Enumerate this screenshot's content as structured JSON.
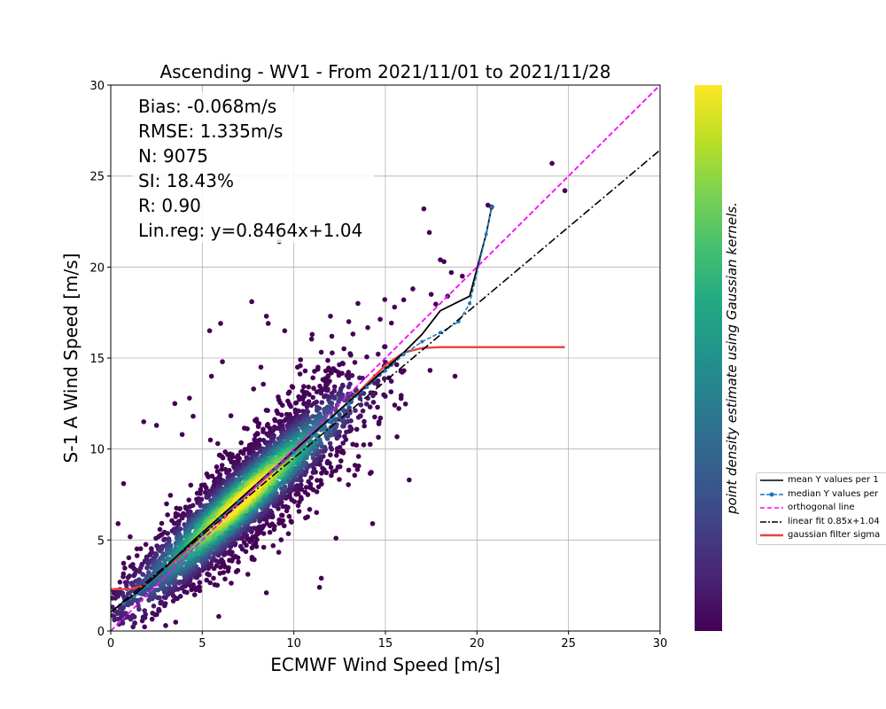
{
  "chart_data": {
    "type": "scatter",
    "title": "Ascending - WV1 - From 2021/11/01 to 2021/11/28",
    "xlabel": "ECMWF Wind Speed [m/s]",
    "ylabel": "S-1 A Wind Speed [m/s]",
    "xlim": [
      0,
      30
    ],
    "ylim": [
      0,
      30
    ],
    "x_ticks": [
      "0",
      "5",
      "10",
      "15",
      "20",
      "25",
      "30"
    ],
    "y_ticks": [
      "0",
      "5",
      "10",
      "15",
      "20",
      "25",
      "30"
    ],
    "grid": true,
    "colormap": "viridis",
    "colorbar_label": "point density estimate using Gaussian kernels.",
    "stats": [
      "Bias: -0.068m/s",
      "RMSE: 1.335m/s",
      "N: 9075",
      "SI: 18.43%",
      "R: 0.90",
      "Lin.reg: y=0.8464x+1.04"
    ],
    "legend_position": "outside-right",
    "series": [
      {
        "name": "mean Y values per 1",
        "color": "#000000",
        "style": "solid",
        "x": [
          0.2,
          0.7,
          1.3,
          2.0,
          3.0,
          4.0,
          5.0,
          6.0,
          7.0,
          8.0,
          9.0,
          10.0,
          11.0,
          12.0,
          13.0,
          14.0,
          15.0,
          16.0,
          17.0,
          18.0,
          19.0,
          19.6,
          20.5,
          20.8
        ],
        "y": [
          1.2,
          1.6,
          2.0,
          2.6,
          3.5,
          4.5,
          5.4,
          6.3,
          7.2,
          8.1,
          9.0,
          9.9,
          10.8,
          11.7,
          12.6,
          13.5,
          14.4,
          15.3,
          16.3,
          17.6,
          18.1,
          18.4,
          21.8,
          23.3
        ]
      },
      {
        "name": "median Y values per",
        "color": "#1f77b4",
        "style": "dashed-marker",
        "x": [
          0.7,
          1.3,
          2.0,
          3.0,
          4.0,
          5.0,
          6.0,
          7.0,
          8.0,
          9.0,
          10.0,
          11.0,
          12.0,
          13.0,
          14.0,
          15.0,
          16.0,
          17.0,
          18.0,
          19.0,
          19.6,
          20.5,
          20.8
        ],
        "y": [
          1.5,
          1.9,
          2.5,
          3.4,
          4.4,
          5.3,
          6.2,
          7.1,
          8.0,
          8.9,
          9.8,
          10.7,
          11.6,
          12.5,
          13.4,
          14.3,
          15.2,
          15.9,
          16.4,
          17.0,
          18.0,
          21.8,
          23.3
        ]
      },
      {
        "name": "orthogonal line",
        "color": "#ff00ff",
        "style": "dashed",
        "x": [
          0,
          30
        ],
        "y": [
          0,
          30
        ]
      },
      {
        "name": "linear fit 0.85x+1.04",
        "color": "#000000",
        "style": "dashdot",
        "x": [
          0,
          30
        ],
        "y": [
          1.04,
          26.43
        ]
      },
      {
        "name": "gaussian filter sigma",
        "color": "#e8433f",
        "style": "solid-thick",
        "x": [
          0,
          0.5,
          1.0,
          1.5,
          2.0,
          3.0,
          4.0,
          5.0,
          6.0,
          7.0,
          8.0,
          9.0,
          10.0,
          11.0,
          12.0,
          13.0,
          14.0,
          15.0,
          16.0,
          17.0,
          18.0,
          20.0,
          22.0,
          24.0,
          24.8
        ],
        "y": [
          2.3,
          2.3,
          2.3,
          2.4,
          2.6,
          3.4,
          4.3,
          5.3,
          6.2,
          7.1,
          8.0,
          8.9,
          9.8,
          10.7,
          11.7,
          12.6,
          13.6,
          14.6,
          15.3,
          15.55,
          15.6,
          15.6,
          15.6,
          15.6,
          15.6
        ]
      }
    ],
    "outliers": [
      {
        "x": 24.1,
        "y": 25.7
      },
      {
        "x": 24.8,
        "y": 24.2
      },
      {
        "x": 20.6,
        "y": 23.4
      },
      {
        "x": 20.8,
        "y": 23.3
      },
      {
        "x": 17.1,
        "y": 23.2
      },
      {
        "x": 17.4,
        "y": 21.9
      },
      {
        "x": 9.2,
        "y": 21.4
      },
      {
        "x": 18.0,
        "y": 20.4
      },
      {
        "x": 18.2,
        "y": 20.3
      },
      {
        "x": 18.6,
        "y": 19.7
      },
      {
        "x": 7.7,
        "y": 18.1
      },
      {
        "x": 16.0,
        "y": 18.2
      },
      {
        "x": 18.4,
        "y": 18.4
      },
      {
        "x": 17.5,
        "y": 18.5
      },
      {
        "x": 8.5,
        "y": 17.3
      },
      {
        "x": 8.6,
        "y": 16.9
      },
      {
        "x": 6.0,
        "y": 16.9
      },
      {
        "x": 5.4,
        "y": 16.5
      },
      {
        "x": 11.0,
        "y": 16.3
      },
      {
        "x": 12.0,
        "y": 17.3
      },
      {
        "x": 18.8,
        "y": 14.0
      },
      {
        "x": 16.3,
        "y": 8.3
      },
      {
        "x": 5.5,
        "y": 14.0
      },
      {
        "x": 8.2,
        "y": 14.5
      },
      {
        "x": 10.2,
        "y": 14.5
      },
      {
        "x": 7.8,
        "y": 13.3
      },
      {
        "x": 4.3,
        "y": 12.8
      },
      {
        "x": 3.5,
        "y": 12.5
      },
      {
        "x": 1.8,
        "y": 11.5
      },
      {
        "x": 2.5,
        "y": 11.3
      },
      {
        "x": 0.7,
        "y": 8.1
      },
      {
        "x": 0.4,
        "y": 5.9
      },
      {
        "x": 12.3,
        "y": 5.1
      },
      {
        "x": 11.5,
        "y": 2.9
      },
      {
        "x": 11.4,
        "y": 2.4
      },
      {
        "x": 8.5,
        "y": 2.1
      },
      {
        "x": 5.9,
        "y": 0.8
      },
      {
        "x": 3.0,
        "y": 0.3
      },
      {
        "x": 14.3,
        "y": 5.9
      },
      {
        "x": 9.5,
        "y": 16.5
      },
      {
        "x": 6.1,
        "y": 14.8
      },
      {
        "x": 3.9,
        "y": 10.8
      },
      {
        "x": 4.5,
        "y": 11.8
      },
      {
        "x": 13.0,
        "y": 17.0
      },
      {
        "x": 13.5,
        "y": 18.0
      },
      {
        "x": 15.5,
        "y": 17.8
      },
      {
        "x": 16.5,
        "y": 18.8
      },
      {
        "x": 19.2,
        "y": 19.5
      }
    ]
  }
}
